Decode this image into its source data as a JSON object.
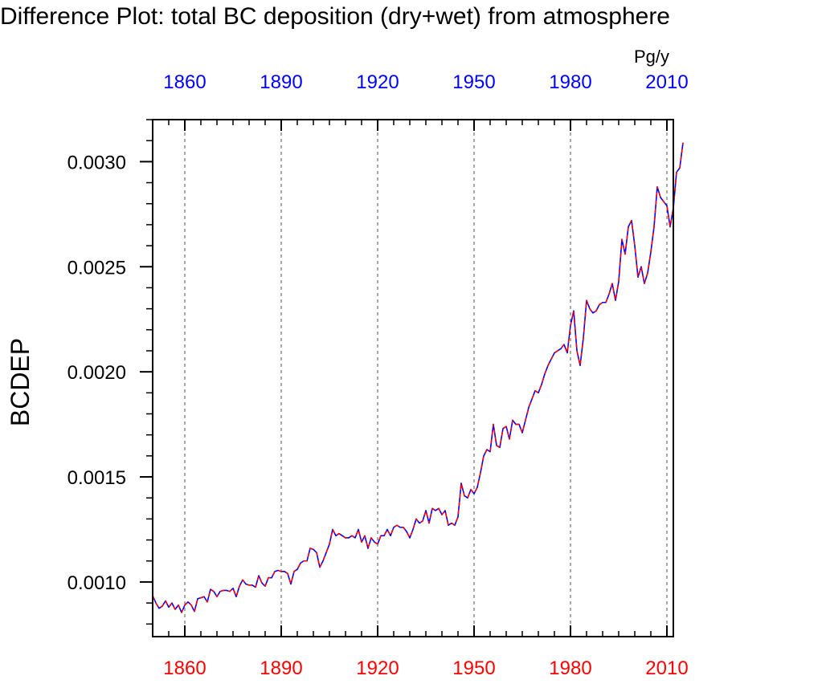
{
  "chart_data": {
    "type": "line",
    "title": "Difference Plot: total BC deposition (dry+wet) from atmosphere",
    "ylabel": "BCDEP",
    "units": "Pg/y",
    "xlim": [
      1850,
      2012
    ],
    "ylim": [
      0.00074,
      0.0032
    ],
    "x_ticks": [
      1860,
      1890,
      1920,
      1950,
      1980,
      2010
    ],
    "x_tick_labels": [
      "1860",
      "1890",
      "1920",
      "1950",
      "1980",
      "2010"
    ],
    "y_ticks": [
      0.001,
      0.0015,
      0.002,
      0.0025,
      0.003
    ],
    "y_tick_labels": [
      "0.0010",
      "0.0015",
      "0.0020",
      "0.0025",
      "0.0030"
    ],
    "grid": "vertical dashed at major x ticks",
    "colors": {
      "top_axis_labels": "#0000ff",
      "bottom_axis_labels": "#ff0000",
      "series_a": "#0000ff",
      "series_b": "#ff0000",
      "grid": "#555555"
    },
    "series": [
      {
        "name": "series-a",
        "color": "#0000ff",
        "dash": "solid",
        "x_start": 1850,
        "x_step": 1,
        "values": [
          0.000935,
          0.0009,
          0.000875,
          0.000885,
          0.00091,
          0.00088,
          0.0009,
          0.00087,
          0.00089,
          0.000855,
          0.00089,
          0.000905,
          0.00089,
          0.00086,
          0.00092,
          0.000925,
          0.00093,
          0.000905,
          0.000965,
          0.000955,
          0.00093,
          0.000955,
          0.00096,
          0.00096,
          0.000955,
          0.00097,
          0.00093,
          0.00098,
          0.00101,
          0.00099,
          0.000985,
          0.000985,
          0.000975,
          0.00103,
          0.000995,
          0.00098,
          0.00102,
          0.00102,
          0.00105,
          0.001055,
          0.00105,
          0.00105,
          0.00104,
          0.00099,
          0.00105,
          0.00106,
          0.00109,
          0.0011,
          0.0011,
          0.00116,
          0.001155,
          0.00114,
          0.00107,
          0.0011,
          0.00114,
          0.00118,
          0.00125,
          0.00122,
          0.00123,
          0.00122,
          0.00121,
          0.00121,
          0.00122,
          0.00121,
          0.00125,
          0.00119,
          0.00122,
          0.00116,
          0.00121,
          0.00119,
          0.00118,
          0.00122,
          0.00122,
          0.00125,
          0.00122,
          0.00126,
          0.00127,
          0.00126,
          0.00126,
          0.00124,
          0.00121,
          0.00125,
          0.0013,
          0.00128,
          0.00129,
          0.00134,
          0.00128,
          0.00135,
          0.00134,
          0.00135,
          0.00132,
          0.00134,
          0.00127,
          0.00128,
          0.00127,
          0.00131,
          0.00147,
          0.00141,
          0.0014,
          0.00144,
          0.00142,
          0.00145,
          0.00152,
          0.0016,
          0.00163,
          0.00162,
          0.00175,
          0.00165,
          0.00164,
          0.00173,
          0.00174,
          0.00168,
          0.00177,
          0.00175,
          0.00175,
          0.00171,
          0.00177,
          0.00183,
          0.00187,
          0.00191,
          0.0019,
          0.00194,
          0.00199,
          0.00203,
          0.00206,
          0.00209,
          0.0021,
          0.00211,
          0.00213,
          0.00209,
          0.00222,
          0.00229,
          0.0021,
          0.00203,
          0.00216,
          0.00234,
          0.0023,
          0.00228,
          0.00229,
          0.00232,
          0.00233,
          0.00233,
          0.00237,
          0.00242,
          0.00234,
          0.00243,
          0.00263,
          0.00256,
          0.00269,
          0.00272,
          0.0026,
          0.00245,
          0.0025,
          0.00242,
          0.00247,
          0.00257,
          0.00269,
          0.00288,
          0.00283,
          0.00281,
          0.00279,
          0.00269,
          0.00278,
          0.00295,
          0.00297,
          0.00309
        ]
      },
      {
        "name": "series-b",
        "color": "#ff0000",
        "dash": "dashed",
        "x_start": 1850,
        "x_step": 1,
        "values": [
          0.000935,
          0.0009,
          0.000875,
          0.000885,
          0.00091,
          0.00088,
          0.0009,
          0.00087,
          0.00089,
          0.000855,
          0.00089,
          0.000905,
          0.00089,
          0.00086,
          0.00092,
          0.000925,
          0.00093,
          0.000905,
          0.000965,
          0.000955,
          0.00093,
          0.000955,
          0.00096,
          0.00096,
          0.000955,
          0.00097,
          0.00093,
          0.00098,
          0.00101,
          0.00099,
          0.000985,
          0.000985,
          0.000975,
          0.00103,
          0.000995,
          0.00098,
          0.00102,
          0.00102,
          0.00105,
          0.001055,
          0.00105,
          0.00105,
          0.00104,
          0.00099,
          0.00105,
          0.00106,
          0.00109,
          0.0011,
          0.0011,
          0.00116,
          0.001155,
          0.00114,
          0.00107,
          0.0011,
          0.00114,
          0.00118,
          0.00125,
          0.00122,
          0.00123,
          0.00122,
          0.00121,
          0.00121,
          0.00122,
          0.00121,
          0.00125,
          0.00119,
          0.00122,
          0.00116,
          0.00121,
          0.00119,
          0.00118,
          0.00122,
          0.00122,
          0.00125,
          0.00122,
          0.00126,
          0.00127,
          0.00126,
          0.00126,
          0.00124,
          0.00121,
          0.00125,
          0.0013,
          0.00128,
          0.00129,
          0.00134,
          0.00128,
          0.00135,
          0.00134,
          0.00135,
          0.00132,
          0.00134,
          0.00127,
          0.00128,
          0.00127,
          0.00131,
          0.00147,
          0.00141,
          0.0014,
          0.00144,
          0.00142,
          0.00145,
          0.00152,
          0.0016,
          0.00163,
          0.00162,
          0.00175,
          0.00165,
          0.00164,
          0.00173,
          0.00174,
          0.00168,
          0.00177,
          0.00175,
          0.00175,
          0.00171,
          0.00177,
          0.00183,
          0.00187,
          0.00191,
          0.0019,
          0.00194,
          0.00199,
          0.00203,
          0.00206,
          0.00209,
          0.0021,
          0.00211,
          0.00213,
          0.00209,
          0.00222,
          0.00229,
          0.0021,
          0.00203,
          0.00216,
          0.00234,
          0.0023,
          0.00228,
          0.00229,
          0.00232,
          0.00233,
          0.00233,
          0.00237,
          0.00242,
          0.00234,
          0.00243,
          0.00263,
          0.00256,
          0.00269,
          0.00272,
          0.0026,
          0.00245,
          0.0025,
          0.00242,
          0.00247,
          0.00257,
          0.00269,
          0.00288,
          0.00283,
          0.00281,
          0.00279,
          0.00269,
          0.00278,
          0.00295,
          0.00297,
          0.00309
        ]
      }
    ]
  }
}
